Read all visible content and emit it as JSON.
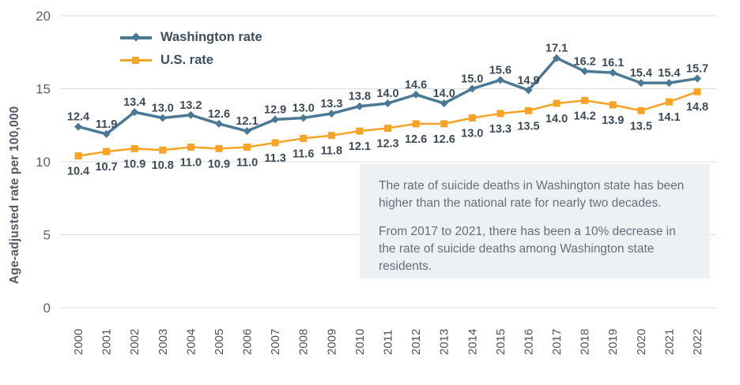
{
  "chart_data": {
    "type": "line",
    "title": "",
    "xlabel": "",
    "ylabel": "Age-adjusted rate per 100,000",
    "ylim": [
      0,
      20
    ],
    "yticks": [
      0,
      5,
      10,
      15,
      20
    ],
    "grid": true,
    "legend_position": "top-left",
    "x": [
      "2000",
      "2001",
      "2002",
      "2003",
      "2004",
      "2005",
      "2006",
      "2007",
      "2008",
      "2009",
      "2010",
      "2011",
      "2012",
      "2013",
      "2014",
      "2015",
      "2016",
      "2017",
      "2018",
      "2019",
      "2020",
      "2021",
      "2022"
    ],
    "series": [
      {
        "name": "Washington rate",
        "color": "#4b7995",
        "marker": "diamond",
        "values": [
          12.4,
          11.9,
          13.4,
          13.0,
          13.2,
          12.6,
          12.1,
          12.9,
          13.0,
          13.3,
          13.8,
          14.0,
          14.6,
          14.0,
          15.0,
          15.6,
          14.9,
          17.1,
          16.2,
          16.1,
          15.4,
          15.4,
          15.7
        ]
      },
      {
        "name": "U.S. rate",
        "color": "#f7a426",
        "marker": "square",
        "values": [
          10.4,
          10.7,
          10.9,
          10.8,
          11.0,
          10.9,
          11.0,
          11.3,
          11.6,
          11.8,
          12.1,
          12.3,
          12.6,
          12.6,
          13.0,
          13.3,
          13.5,
          14.0,
          14.2,
          13.9,
          13.5,
          14.1,
          14.8
        ]
      }
    ]
  },
  "annotation": {
    "bg_color": "#edf1f4",
    "paragraph1": "The rate of suicide deaths in Washington state has been higher than the national rate for nearly two decades.",
    "paragraph2": "From 2017 to 2021, there has been a 10% decrease in the rate of suicide deaths among Washington state residents."
  },
  "colors": {
    "gridline": "#d8dcde",
    "tick_text": "#5a636d",
    "data_label_text": "#3d4a55"
  }
}
